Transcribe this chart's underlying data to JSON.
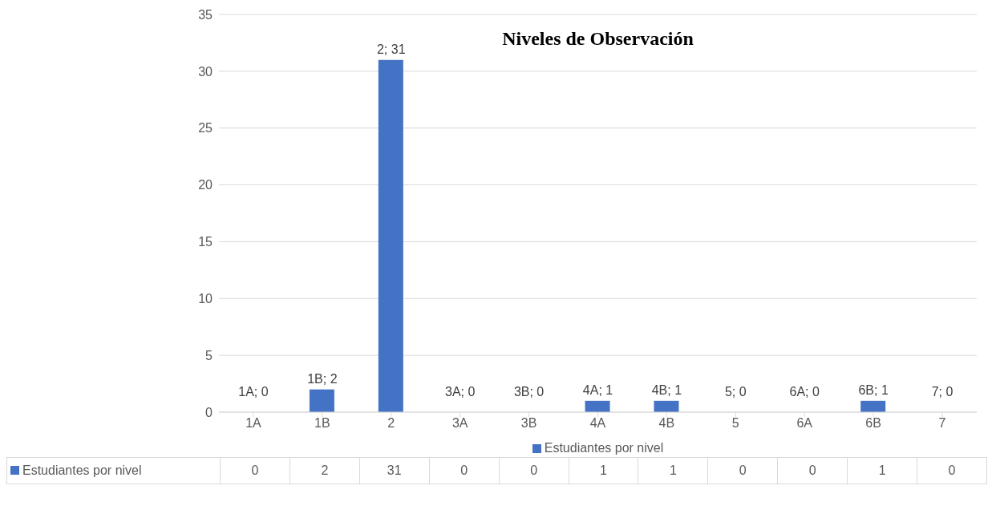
{
  "chart_data": {
    "type": "bar",
    "title": "Niveles de Observación",
    "categories": [
      "1A",
      "1B",
      "2",
      "3A",
      "3B",
      "4A",
      "4B",
      "5",
      "6A",
      "6B",
      "7"
    ],
    "series": [
      {
        "name": "Estudiantes por nivel",
        "color": "#4472c4",
        "values": [
          0,
          2,
          31,
          0,
          0,
          1,
          1,
          0,
          0,
          1,
          0
        ]
      }
    ],
    "annotations": [
      {
        "text": "1A; 0",
        "x": "1A",
        "y": 0
      },
      {
        "text": "1B; 2",
        "x": "1B",
        "y": 2
      },
      {
        "text": "2; 31",
        "x": "2",
        "y": 31
      },
      {
        "text": "3A; 0",
        "x": "3A",
        "y": 0
      },
      {
        "text": "3B; 0",
        "x": "3B",
        "y": 0
      },
      {
        "text": "4A; 1",
        "x": "4A",
        "y": 1
      },
      {
        "text": "4B; 1",
        "x": "4B",
        "y": 1
      },
      {
        "text": "5; 0",
        "x": "5",
        "y": 0
      },
      {
        "text": "6A; 0",
        "x": "6A",
        "y": 0
      },
      {
        "text": "6B; 1",
        "x": "6B",
        "y": 1
      },
      {
        "text": "7; 0",
        "x": "7",
        "y": 0
      }
    ],
    "ylim": [
      0,
      35
    ],
    "yticks": [
      0,
      5,
      10,
      15,
      20,
      25,
      30,
      35
    ],
    "grid": "y",
    "legend": "bottom",
    "data_labels": true
  }
}
